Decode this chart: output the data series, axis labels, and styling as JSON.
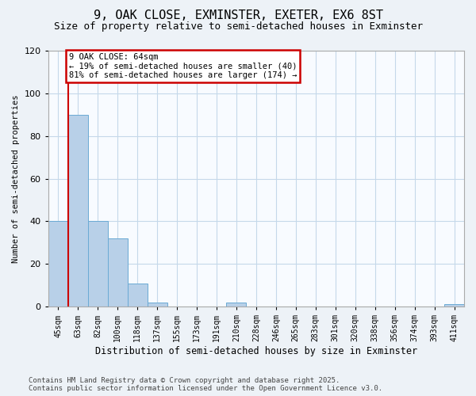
{
  "title": "9, OAK CLOSE, EXMINSTER, EXETER, EX6 8ST",
  "subtitle": "Size of property relative to semi-detached houses in Exminster",
  "xlabel": "Distribution of semi-detached houses by size in Exminster",
  "ylabel": "Number of semi-detached properties",
  "categories": [
    "45sqm",
    "63sqm",
    "82sqm",
    "100sqm",
    "118sqm",
    "137sqm",
    "155sqm",
    "173sqm",
    "191sqm",
    "210sqm",
    "228sqm",
    "246sqm",
    "265sqm",
    "283sqm",
    "301sqm",
    "320sqm",
    "338sqm",
    "356sqm",
    "374sqm",
    "393sqm",
    "411sqm"
  ],
  "values": [
    40,
    90,
    40,
    32,
    11,
    2,
    0,
    0,
    0,
    2,
    0,
    0,
    0,
    0,
    0,
    0,
    0,
    0,
    0,
    0,
    1
  ],
  "bar_color": "#b8d0e8",
  "bar_edgecolor": "#6aaad4",
  "bar_linewidth": 0.7,
  "vline_x_index": 1,
  "vline_color": "#cc0000",
  "annotation_line1": "9 OAK CLOSE: 64sqm",
  "annotation_line2": "← 19% of semi-detached houses are smaller (40)",
  "annotation_line3": "81% of semi-detached houses are larger (174) →",
  "annotation_fontsize": 7.5,
  "annotation_box_color": "#cc0000",
  "ylim": [
    0,
    120
  ],
  "yticks": [
    0,
    20,
    40,
    60,
    80,
    100,
    120
  ],
  "footer": "Contains HM Land Registry data © Crown copyright and database right 2025.\nContains public sector information licensed under the Open Government Licence v3.0.",
  "bg_color": "#edf2f7",
  "plot_bg_color": "#f8fbff",
  "grid_color": "#c5d8ea",
  "title_fontsize": 11,
  "subtitle_fontsize": 9,
  "xlabel_fontsize": 8.5,
  "ylabel_fontsize": 7.5,
  "tick_fontsize": 7,
  "ytick_fontsize": 8,
  "footer_fontsize": 6.5
}
